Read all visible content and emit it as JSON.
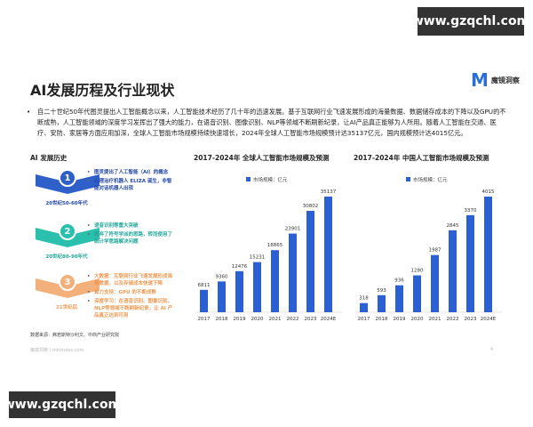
{
  "watermark": "www.gzqchl.com",
  "logo": {
    "name": "魔镜洞察"
  },
  "title": "AI发展历程及行业现状",
  "intro": "自二十世纪50年代图灵提出人工智能概念以来，人工智能技术经历了几十年的迅速发展。基于互联网行业飞速发展形成的海量数据、数据储存成本的下降以及GPU的不断成熟，人工智能领域的深度学习发挥出了强大的能力，在语音识别、图像识别、NLP等领域不断刷新纪录，让AI产品真正能够为人所用。随着人工智能在交通、医疗、安防、家居等方面应用加深，全球人工智能市场规模持续快速增长，2024年全球人工智能市场规模预计达35137亿元，国内规模预计达4015亿元。",
  "history": {
    "title": "AI 发展历史",
    "stages": [
      {
        "num": "1",
        "era": "20世纪50-60年代",
        "color": "#2f5fc9",
        "text_color": "#2448a8",
        "bullets": [
          "图灵提出了人工智能（AI）的概念",
          "心理治疗机器人 ELIZA 诞生，非智能对话机器人出现"
        ]
      },
      {
        "num": "2",
        "era": "20世纪80-90年代",
        "color": "#2bbfae",
        "text_color": "#22a898",
        "bullets": [
          "语音识别等重大突破",
          "摒弃了符号学派的思路，转而使用了统计学思路解决问题"
        ]
      },
      {
        "num": "3",
        "era": "21世纪后",
        "color": "#f4b07a",
        "text_color": "#ee9a55",
        "bullets": [
          "大数据：互联网行业飞速发展形成海量数据，以及存储成本快速下降",
          "算力支持：GPU 的不断成熟",
          "深度学习：在语音识别、图像识别、NLP等领域不断刷新纪录，让 AI 产品真正达到可用"
        ]
      }
    ]
  },
  "source": "数据来源：弗若斯特沙利文、中商产业研究院",
  "footer": "魔镜洞察 | mktindex.com",
  "page_number": "4",
  "chart_data": [
    {
      "type": "bar",
      "title": "2017-2024年 全球人工智能市场规模及预测",
      "legend": "市场规模：亿元",
      "categories": [
        "2017",
        "2018",
        "2019",
        "2020",
        "2021",
        "2022",
        "2023",
        "2024E"
      ],
      "values": [
        6811,
        9360,
        12476,
        15231,
        18865,
        23901,
        30802,
        35137
      ],
      "color": "#2b5fd4",
      "legend_placement": "top"
    },
    {
      "type": "bar",
      "title": "2017-2024年 中国人工智能市场规模及预测",
      "legend": "市场规模：亿元",
      "categories": [
        "2017",
        "2018",
        "2019",
        "2020",
        "2021",
        "2022",
        "2023",
        "2024E"
      ],
      "values": [
        318,
        593,
        936,
        1280,
        1987,
        2845,
        3370,
        4015
      ],
      "color": "#2b5fd4",
      "legend_placement": "top"
    }
  ]
}
